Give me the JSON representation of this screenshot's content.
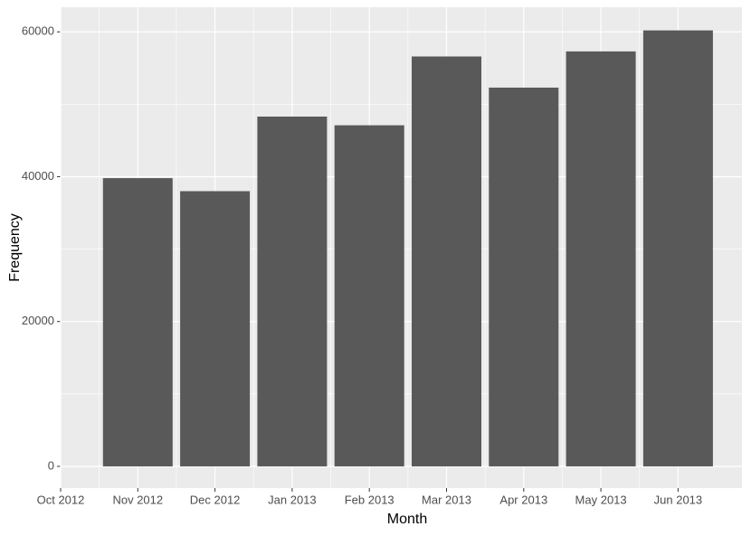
{
  "chart_data": {
    "type": "bar",
    "x_label": "Month",
    "y_label": "Frequency",
    "categories": [
      "Oct 2012",
      "Nov 2012",
      "Dec 2012",
      "Jan 2013",
      "Feb 2013",
      "Mar 2013",
      "Apr 2013",
      "May 2013",
      "Jun 2013"
    ],
    "values": [
      null,
      39800,
      38000,
      48300,
      47100,
      56600,
      52300,
      57300,
      60200
    ],
    "color": "#595959",
    "ylim": [
      -3000,
      63400
    ],
    "yticks": [
      0,
      20000,
      40000,
      60000
    ],
    "grid": true
  }
}
